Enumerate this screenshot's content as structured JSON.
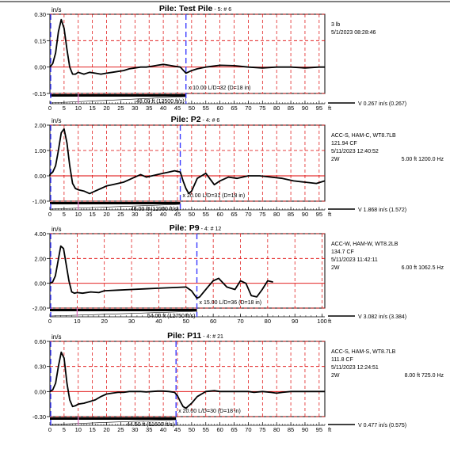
{
  "chart_data": [
    {
      "type": "line",
      "title_main": "Pile: Test Pile",
      "title_sub": "- 5: # 6",
      "yunit": "in/s",
      "yticks": [
        "0.30",
        "0.15",
        "0.00",
        "-0.15"
      ],
      "ylim": [
        -0.15,
        0.3
      ],
      "xlim": [
        0,
        97
      ],
      "xtick_labels": [
        "0",
        "5",
        "10",
        "15",
        "20",
        "25",
        "30",
        "35",
        "40",
        "45",
        "50",
        "55",
        "60",
        "65",
        "70",
        "75",
        "80",
        "85",
        "90",
        "95"
      ],
      "xunit": "ft",
      "blue_lines": [
        0,
        48
      ],
      "pink_line": 10,
      "info": [
        "3 lb",
        "5/1/2023 08:28:46"
      ],
      "info_row": null,
      "scale_text": "x 10.00  L/D=32 (D=18 in)",
      "length_text": "48.00 ft (12500 ft/s)",
      "readout": "V  0.267 in/s  (0.267)",
      "series": [
        {
          "x": [
            0,
            1,
            2,
            3,
            4,
            5,
            6,
            7,
            8,
            9,
            10,
            12,
            14,
            16,
            18,
            20,
            22,
            24,
            26,
            28,
            30,
            32,
            34,
            36,
            38,
            40,
            42,
            44,
            46,
            48,
            50,
            52,
            55,
            60,
            65,
            70,
            75,
            80,
            85,
            90,
            95,
            97
          ],
          "y": [
            0,
            0.02,
            0.08,
            0.2,
            0.27,
            0.22,
            0.1,
            0.0,
            -0.04,
            -0.04,
            -0.03,
            -0.04,
            -0.03,
            -0.035,
            -0.04,
            -0.035,
            -0.03,
            -0.025,
            -0.02,
            -0.01,
            -0.005,
            0.0,
            0.0,
            0.005,
            0.01,
            0.015,
            0.01,
            0.005,
            0.0,
            -0.035,
            -0.02,
            -0.01,
            0.0,
            0.01,
            0.008,
            0.0,
            -0.005,
            0.0,
            0.0,
            -0.005,
            0.0,
            0.0
          ]
        }
      ]
    },
    {
      "type": "line",
      "title_main": "Pile: P2",
      "title_sub": "- 4: # 6",
      "yunit": "in/s",
      "yticks": [
        "2.00",
        "1.00",
        "0.00",
        "-1.00"
      ],
      "ylim": [
        -1.0,
        2.0
      ],
      "xlim": [
        0,
        97
      ],
      "xtick_labels": [
        "0",
        "5",
        "10",
        "15",
        "20",
        "25",
        "30",
        "35",
        "40",
        "45",
        "50",
        "55",
        "60",
        "65",
        "70",
        "75",
        "80",
        "85",
        "90",
        "95"
      ],
      "xunit": "ft",
      "blue_lines": [
        0,
        46
      ],
      "pink_line": 10,
      "info": [
        "ACC-S, HAM-C, WT8.7LB",
        "121.94 CF",
        "5/11/2023 12:40:52"
      ],
      "info_row": [
        "2W",
        "5.00 ft 1200.0 Hz"
      ],
      "scale_text": "x 20.00  L/D=31 (D=18 in)",
      "length_text": "46.00 ft (12000 ft/s)",
      "readout": "V  1.868 in/s  (1.572)",
      "series": [
        {
          "x": [
            -1,
            0,
            1,
            2,
            3,
            4,
            5,
            6,
            7,
            8,
            9,
            10,
            12,
            14,
            16,
            18,
            20,
            22,
            24,
            26,
            28,
            30,
            32,
            34,
            36,
            38,
            40,
            42,
            44,
            46,
            47,
            48,
            49,
            50,
            52,
            55,
            58,
            60,
            63,
            66,
            70,
            74,
            78,
            82,
            86,
            90,
            94,
            97
          ],
          "y": [
            0.0,
            0.05,
            0.15,
            0.4,
            1.0,
            1.7,
            1.85,
            1.3,
            0.4,
            -0.3,
            -0.5,
            -0.55,
            -0.6,
            -0.7,
            -0.6,
            -0.5,
            -0.4,
            -0.35,
            -0.3,
            -0.25,
            -0.15,
            -0.05,
            0.05,
            -0.05,
            0.0,
            0.05,
            0.1,
            0.15,
            0.2,
            0.15,
            -0.2,
            -0.5,
            -0.7,
            -0.6,
            -0.1,
            0.1,
            -0.35,
            -0.2,
            -0.05,
            -0.1,
            0.0,
            0.0,
            -0.05,
            -0.1,
            -0.2,
            -0.25,
            -0.3,
            -0.2
          ]
        }
      ]
    },
    {
      "type": "line",
      "title_main": "Pile: P9",
      "title_sub": "- 4: # 12",
      "yunit": "in/s",
      "yticks": [
        "4.00",
        "2.00",
        "0.00",
        "-2.00"
      ],
      "ylim": [
        -2.0,
        4.0
      ],
      "xlim": [
        0,
        101
      ],
      "xtick_labels": [
        "0",
        "10",
        "20",
        "30",
        "40",
        "50",
        "60",
        "70",
        "80",
        "90",
        "100"
      ],
      "xunit": "ft",
      "blue_lines": [
        0,
        54
      ],
      "pink_line": 10,
      "info": [
        "ACC-W, HAM-W, WT8.2LB",
        "134.7 CF",
        "5/11/2023 11:42:11"
      ],
      "info_row": [
        "2W",
        "6.00 ft 1062.5 Hz"
      ],
      "scale_text": "x 15.00  L/D=36 (D=18 in)",
      "length_text": "54.00 ft (12750 ft/s)",
      "readout": "V  3.082 in/s  (3.384)",
      "series": [
        {
          "x": [
            0,
            1,
            2,
            3,
            4,
            5,
            6,
            7,
            8,
            9,
            10,
            12,
            15,
            18,
            20,
            25,
            30,
            35,
            40,
            45,
            50,
            52,
            54,
            55,
            58,
            60,
            62,
            65,
            68,
            70,
            72,
            74,
            76,
            78,
            80,
            82
          ],
          "y": [
            0.0,
            0.1,
            0.6,
            1.8,
            3.0,
            2.8,
            1.5,
            0.2,
            -0.7,
            -0.8,
            -0.75,
            -0.8,
            -0.7,
            -0.75,
            -0.6,
            -0.55,
            -0.5,
            -0.45,
            -0.4,
            -0.35,
            -0.3,
            -0.6,
            -1.2,
            -1.1,
            -0.3,
            0.2,
            0.4,
            -0.3,
            -0.5,
            0.2,
            0.0,
            -1.0,
            -1.1,
            -0.5,
            0.2,
            0.1
          ]
        }
      ]
    },
    {
      "type": "line",
      "title_main": "Pile: P11",
      "title_sub": "- 4: # 21",
      "yunit": "in/s",
      "yticks": [
        "0.60",
        "0.30",
        "0.00",
        "-0.30"
      ],
      "ylim": [
        -0.3,
        0.6
      ],
      "xlim": [
        0,
        97
      ],
      "xtick_labels": [
        "0",
        "5",
        "10",
        "15",
        "20",
        "25",
        "30",
        "35",
        "40",
        "45",
        "50",
        "55",
        "60",
        "65",
        "70",
        "75",
        "80",
        "85",
        "90",
        "95"
      ],
      "xunit": "ft",
      "blue_lines": [
        0,
        44.5
      ],
      "pink_line": 10,
      "info": [
        "ACC-S, HAM-S, WT8.7LB",
        "111.8 CF",
        "5/11/2023 12:24:51"
      ],
      "info_row": [
        "2W",
        "8.00 ft 725.0 Hz"
      ],
      "scale_text": "x 20.00  L/D=30 (D=18 in)",
      "length_text": "44.50 ft (11600 ft/s)",
      "readout": "V  0.477 in/s  (0.575)",
      "series": [
        {
          "x": [
            0,
            1,
            2,
            3,
            4,
            5,
            6,
            7,
            8,
            9,
            10,
            12,
            14,
            16,
            18,
            20,
            22,
            24,
            26,
            28,
            30,
            32,
            34,
            36,
            38,
            40,
            42,
            44,
            45,
            46,
            47,
            48,
            50,
            52,
            55,
            58,
            60,
            62,
            65,
            68,
            70,
            72,
            75,
            78,
            80,
            82,
            85,
            88,
            90,
            93,
            95,
            97
          ],
          "y": [
            0,
            0.02,
            0.1,
            0.3,
            0.47,
            0.4,
            0.1,
            -0.1,
            -0.18,
            -0.17,
            -0.15,
            -0.14,
            -0.12,
            -0.1,
            -0.06,
            -0.03,
            -0.02,
            -0.01,
            -0.01,
            0.0,
            0.0,
            0.0,
            -0.005,
            0.0,
            0.005,
            0.005,
            0.0,
            -0.01,
            -0.05,
            -0.12,
            -0.18,
            -0.2,
            -0.14,
            -0.06,
            0.0,
            0.01,
            0.0,
            0.0,
            0.0,
            0.0,
            0.0,
            -0.01,
            0.0,
            -0.01,
            -0.02,
            -0.01,
            0.0,
            0.0,
            0.0,
            0.0,
            0.0,
            0.0
          ]
        }
      ]
    }
  ]
}
